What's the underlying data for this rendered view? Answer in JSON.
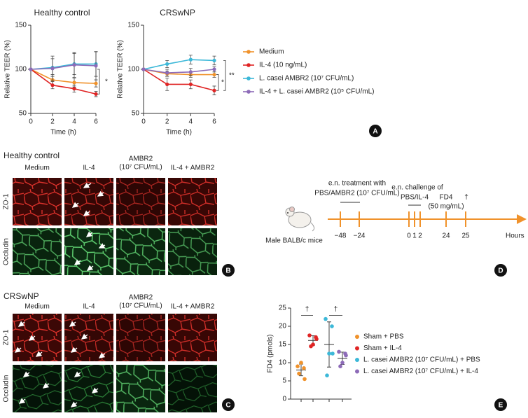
{
  "chart_data": [
    {
      "type": "line",
      "title": "Healthy control",
      "x_label": "Time (h)",
      "y_label": "Relative TEER (%)",
      "x": [
        0,
        2,
        4,
        6
      ],
      "xlim": [
        0,
        6
      ],
      "xticks": [
        0,
        2,
        4,
        6
      ],
      "ylim": [
        50,
        150
      ],
      "yticks": [
        50,
        100,
        150
      ],
      "series": [
        {
          "name": "Medium",
          "color": "#f0922b",
          "values": [
            100,
            88,
            85,
            84
          ],
          "errors": [
            0,
            6,
            5,
            4
          ]
        },
        {
          "name": "IL-4 (10 ng/mL)",
          "color": "#e02424",
          "values": [
            100,
            82,
            78,
            72
          ],
          "errors": [
            0,
            4,
            4,
            3
          ]
        },
        {
          "name": "L. casei AMBR2 (10⁷ CFU/mL)",
          "color": "#3cb8d8",
          "values": [
            100,
            102,
            106,
            106
          ],
          "errors": [
            0,
            10,
            12,
            14
          ]
        },
        {
          "name": "IL-4 + L. casei AMBR2 (10⁵ CFU/mL)",
          "color": "#8d6bb8",
          "values": [
            100,
            101,
            105,
            104
          ],
          "errors": [
            0,
            14,
            14,
            16
          ]
        }
      ],
      "annotations": [
        "*"
      ]
    },
    {
      "type": "line",
      "title": "CRSwNP",
      "x_label": "Time (h)",
      "y_label": "Relative TEER (%)",
      "x": [
        0,
        2,
        4,
        6
      ],
      "xlim": [
        0,
        6
      ],
      "xticks": [
        0,
        2,
        4,
        6
      ],
      "ylim": [
        50,
        150
      ],
      "yticks": [
        50,
        100,
        150
      ],
      "series": [
        {
          "color": "#f0922b",
          "values": [
            100,
            95,
            94,
            94
          ],
          "errors": [
            0,
            3,
            3,
            3
          ]
        },
        {
          "color": "#e02424",
          "values": [
            100,
            83,
            83,
            76
          ],
          "errors": [
            0,
            7,
            5,
            5
          ]
        },
        {
          "color": "#3cb8d8",
          "values": [
            100,
            106,
            111,
            110
          ],
          "errors": [
            0,
            4,
            5,
            5
          ]
        },
        {
          "color": "#8d6bb8",
          "values": [
            100,
            96,
            97,
            100
          ],
          "errors": [
            0,
            4,
            4,
            3
          ]
        }
      ],
      "annotations": [
        "*",
        "**"
      ]
    },
    {
      "type": "strip",
      "y_label": "FD4 (pmols)",
      "ylim": [
        0,
        25
      ],
      "yticks": [
        0,
        5,
        10,
        15,
        20,
        25
      ],
      "series": [
        {
          "name": "Sham + PBS",
          "color": "#f0922b",
          "values": [
            9,
            8.5,
            10,
            7,
            5.5
          ],
          "mean": 8,
          "sd": 1.6
        },
        {
          "name": "Sham + IL-4",
          "color": "#e02424",
          "values": [
            17.5,
            17,
            15,
            14.5,
            16.5
          ],
          "mean": 16.1,
          "sd": 1.3
        },
        {
          "name": "L. casei AMBR2 (10⁷ CFU/mL) + PBS",
          "color": "#3cb8d8",
          "values": [
            22,
            20,
            12.5,
            6.5,
            12.5
          ],
          "mean": 15,
          "sd": 6.2
        },
        {
          "name": "L. casei AMBR2 (10⁷ CFU/mL) + IL-4",
          "color": "#8d6bb8",
          "values": [
            13,
            12.5,
            10,
            9,
            12
          ],
          "mean": 11.2,
          "sd": 1.7
        }
      ],
      "annotations": [
        "†",
        "†"
      ]
    }
  ],
  "panel_labels": [
    "A",
    "B",
    "C",
    "D",
    "E"
  ],
  "panel_b": {
    "title": "Healthy control",
    "columns": [
      "Medium",
      "IL-4",
      [
        "AMBR2",
        "(10⁷ CFU/mL)"
      ],
      "IL-4 + AMBR2"
    ],
    "rows": [
      "ZO-1",
      "Occludin"
    ]
  },
  "panel_c": {
    "title": "CRSwNP",
    "columns": [
      "Medium",
      "IL-4",
      [
        "AMBR2",
        "(10⁷ CFU/mL)"
      ],
      "IL-4 + AMBR2"
    ],
    "rows": [
      "ZO-1",
      "Occludin"
    ]
  },
  "panel_d": {
    "subject": "Male BALB/c mice",
    "treatment": [
      "e.n. treatment with",
      "PBS/AMBR2 (10⁷ CFU/mL)"
    ],
    "challenge": [
      "e.n. challenge of",
      "PBS/IL-4"
    ],
    "fd4": [
      "FD4",
      "(50 mg/mL)"
    ],
    "dagger": "†",
    "axis_label": "Hours",
    "ticks": [
      "−48",
      "−24",
      "0",
      "1",
      "2",
      "24",
      "25"
    ]
  }
}
